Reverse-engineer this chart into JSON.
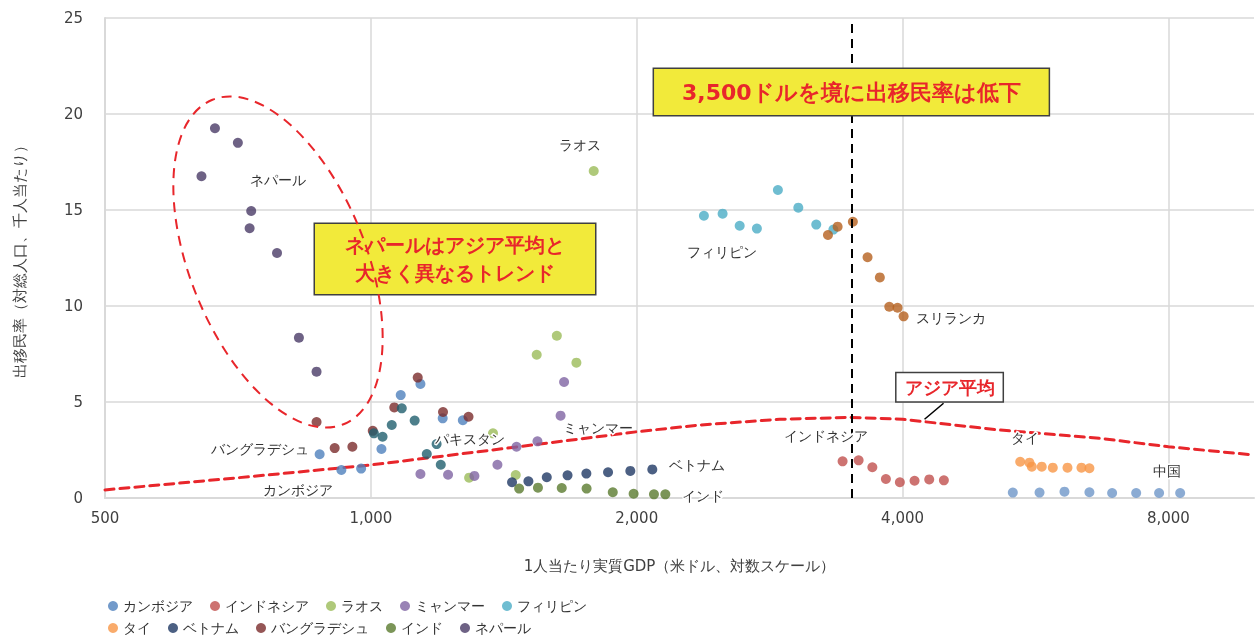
{
  "chart_data": {
    "type": "scatter",
    "xlabel": "1人当たり実質GDP（米ドル、対数スケール）",
    "ylabel": "出移民率（対総人口、千人当たり）",
    "log": "x",
    "xlim": [
      500,
      10000
    ],
    "xticks": [
      500,
      {
        "value": 1000,
        "label": "1,000"
      },
      {
        "value": 2000,
        "label": "2,000"
      },
      {
        "value": 4000,
        "label": "4,000"
      },
      {
        "value": 8000,
        "label": "8,000"
      }
    ],
    "ylim": [
      0,
      25
    ],
    "yticks": [
      0,
      5,
      10,
      15,
      20,
      25
    ],
    "grid": true,
    "legend": "bottom",
    "marker": "circle",
    "series": [
      {
        "name": "カンボジア",
        "color": "#4f81bd",
        "x": [
          875,
          926,
          975,
          1028,
          1081,
          1138,
          1206,
          1271
        ],
        "values": [
          2.28,
          1.46,
          1.53,
          2.55,
          5.36,
          5.94,
          4.15,
          4.05
        ]
      },
      {
        "name": "インドネシア",
        "color": "#c0504d",
        "x": [
          3421,
          3567,
          3697,
          3830,
          3972,
          4127,
          4288,
          4455
        ],
        "values": [
          1.91,
          1.96,
          1.6,
          0.99,
          0.82,
          0.9,
          0.97,
          0.92
        ]
      },
      {
        "name": "ラオス",
        "color": "#9bbb59",
        "x": [
          1292,
          1375,
          1459,
          1541,
          1624,
          1709,
          1788
        ],
        "values": [
          1.06,
          3.37,
          1.2,
          7.46,
          8.45,
          7.05,
          17.03
        ]
      },
      {
        "name": "ミャンマー",
        "color": "#8064a2",
        "x": [
          1138,
          1223,
          1310,
          1391,
          1462,
          1544,
          1640,
          1655
        ],
        "values": [
          1.25,
          1.21,
          1.15,
          1.73,
          2.67,
          2.95,
          4.29,
          6.04
        ]
      },
      {
        "name": "フィリピン",
        "color": "#4bacc6",
        "x": [
          2383,
          2502,
          2616,
          2736,
          2890,
          3048,
          3194,
          3340
        ],
        "values": [
          14.7,
          14.81,
          14.18,
          14.03,
          16.04,
          15.12,
          14.24,
          13.98
        ]
      },
      {
        "name": "タイ",
        "color": "#f79646",
        "x": [
          5436,
          5569,
          5603,
          5750,
          5918,
          6149,
          6377,
          6511
        ],
        "values": [
          1.89,
          1.84,
          1.63,
          1.63,
          1.58,
          1.58,
          1.58,
          1.55
        ]
      },
      {
        "name": "ベトナム",
        "color": "#1f3864",
        "x": [
          1445,
          1508,
          1582,
          1670,
          1754,
          1856,
          1967,
          2083
        ],
        "values": [
          0.82,
          0.87,
          1.08,
          1.18,
          1.27,
          1.34,
          1.41,
          1.49
        ]
      },
      {
        "name": "バングラデシュ",
        "color": "#7b2c2c",
        "x": [
          868,
          910,
          953,
          1005,
          1063,
          1130,
          1207,
          1290
        ],
        "values": [
          3.96,
          2.6,
          2.67,
          3.5,
          4.72,
          6.27,
          4.48,
          4.23
        ]
      },
      {
        "name": "インド",
        "color": "#5a7a2e",
        "x": [
          1472,
          1546,
          1645,
          1755,
          1879,
          1984,
          2092,
          2155
        ],
        "values": [
          0.49,
          0.54,
          0.52,
          0.49,
          0.3,
          0.22,
          0.19,
          0.19
        ]
      },
      {
        "name": "ネパール",
        "color": "#4a3b66",
        "x": [
          643,
          666,
          707,
          729,
          732,
          783,
          829,
          868
        ],
        "values": [
          16.76,
          19.26,
          18.5,
          14.05,
          14.95,
          12.76,
          8.35,
          6.58
        ]
      },
      {
        "color": "#215f6e",
        "x": [
          1008,
          1031,
          1056,
          1084,
          1121,
          1157,
          1187,
          1200
        ],
        "values": [
          3.37,
          3.19,
          3.8,
          4.67,
          4.03,
          2.29,
          2.81,
          1.73
        ]
      },
      {
        "color": "#b5601e",
        "x": [
          3293,
          3377,
          3514,
          3651,
          3770,
          3864,
          3948,
          4011
        ],
        "values": [
          13.7,
          14.13,
          14.39,
          12.54,
          11.49,
          9.96,
          9.91,
          9.46
        ]
      },
      {
        "color": "#6e96c8",
        "x": [
          5332,
          5717,
          6101,
          6511,
          6908,
          7355,
          7808,
          8249
        ],
        "values": [
          0.28,
          0.28,
          0.33,
          0.3,
          0.26,
          0.26,
          0.26,
          0.26
        ]
      },
      {
        "type": "line",
        "marker": "none",
        "line_style": "dashed",
        "color": "#e8262b",
        "x": [
          500,
          729,
          1000,
          1400,
          2000,
          2356,
          2904,
          3484,
          4000,
          5150,
          6684,
          8000,
          10000
        ],
        "values": [
          0.42,
          1.11,
          1.72,
          2.55,
          3.45,
          3.8,
          4.1,
          4.2,
          4.1,
          3.54,
          3.11,
          2.67,
          2.24
        ]
      }
    ],
    "ref_lines": [
      {
        "axis": "x",
        "value": 3500,
        "label": "3,500ドルを境に出移民率は低下",
        "color": "#000000",
        "line_style": "dashed"
      }
    ],
    "annotations": [
      "ネパールはアジア平均と大きく異なるトレンド",
      "ネパール",
      "ラオス",
      "フィリピン",
      "スリランカ",
      "バングラデシュ",
      "カンボジア",
      "パキスタン",
      "ミャンマー",
      "ベトナム",
      "インド",
      "インドネシア",
      "タイ",
      "中国",
      {
        "text": "アジア平均",
        "x": 4236,
        "y": 4.1
      }
    ]
  }
}
